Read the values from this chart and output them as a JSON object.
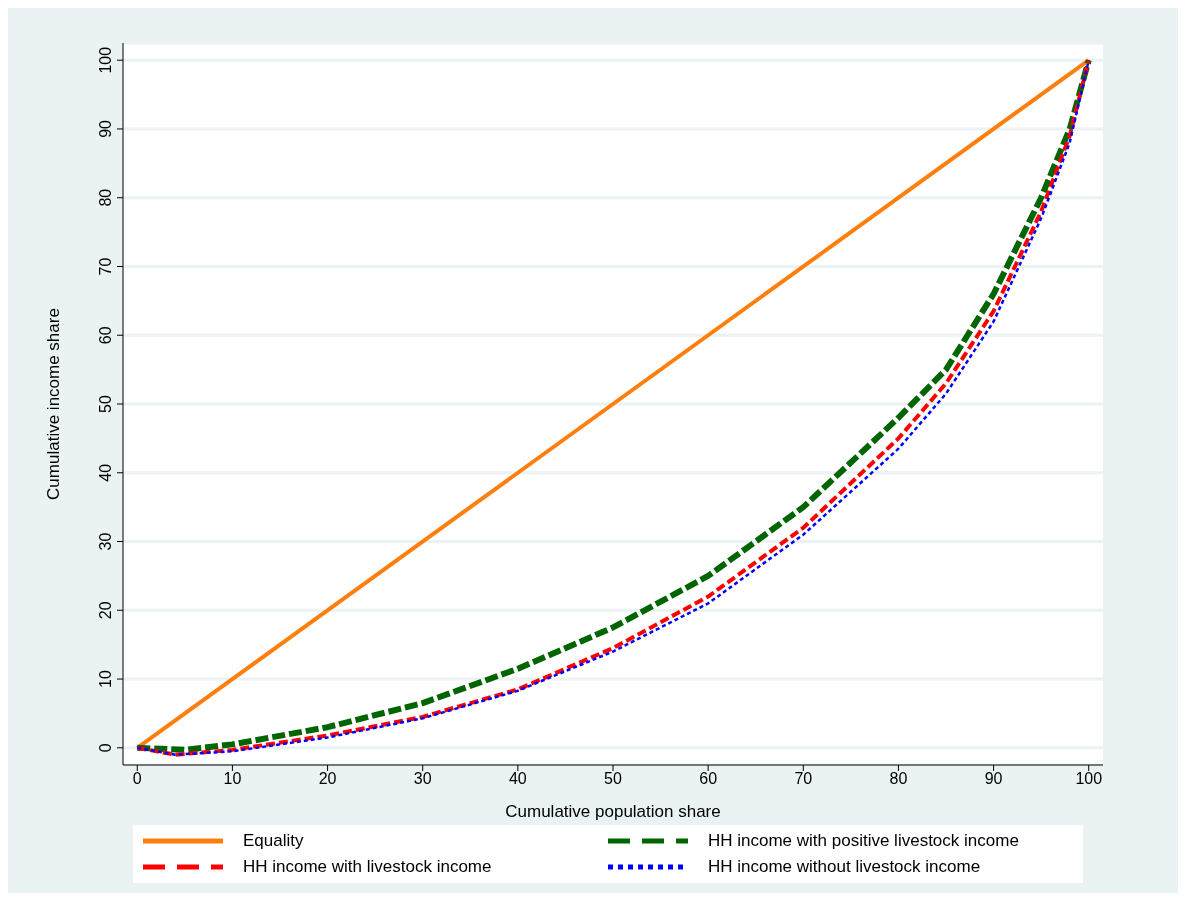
{
  "chart_data": {
    "type": "line",
    "xlabel": "Cumulative population share",
    "ylabel": "Cumulative income share",
    "xlim": [
      -1.5,
      101.5
    ],
    "ylim": [
      -2.5,
      102.5
    ],
    "xticks": [
      0,
      10,
      20,
      30,
      40,
      50,
      60,
      70,
      80,
      90,
      100
    ],
    "yticks": [
      0,
      10,
      20,
      30,
      40,
      50,
      60,
      70,
      80,
      90,
      100
    ],
    "grid": "y",
    "legend": "bottom",
    "marker": "none",
    "series": [
      {
        "name": "Equality",
        "color": "#ff7f0e",
        "line_style": "solid",
        "x": [
          0,
          100
        ],
        "values": [
          0,
          100
        ]
      },
      {
        "name": "HH income with positive livestock income",
        "color": "#006400",
        "line_style": "dashed",
        "x": [
          0,
          5,
          10,
          20,
          30,
          40,
          50,
          60,
          70,
          80,
          85,
          90,
          95,
          98,
          100
        ],
        "values": [
          0,
          -0.3,
          0.5,
          3,
          6.5,
          11.5,
          17.5,
          25,
          35,
          48,
          55,
          66,
          80,
          90,
          100
        ]
      },
      {
        "name": "HH income with livestock income",
        "color": "#ff0000",
        "line_style": "dashed",
        "x": [
          0,
          4,
          10,
          20,
          30,
          40,
          50,
          60,
          70,
          80,
          85,
          90,
          95,
          98,
          100
        ],
        "values": [
          0,
          -1,
          -0.3,
          1.8,
          4.5,
          8.5,
          14.5,
          22,
          32,
          45,
          53,
          63.5,
          78,
          89,
          100
        ]
      },
      {
        "name": "HH income without livestock income",
        "color": "#0000ff",
        "line_style": "dotted",
        "x": [
          0,
          4,
          10,
          20,
          30,
          40,
          50,
          60,
          70,
          80,
          85,
          90,
          95,
          98,
          100
        ],
        "values": [
          0,
          -1,
          -0.5,
          1.5,
          4.3,
          8.3,
          14,
          21,
          31,
          43.5,
          51.5,
          62,
          77,
          88,
          100
        ]
      }
    ]
  }
}
